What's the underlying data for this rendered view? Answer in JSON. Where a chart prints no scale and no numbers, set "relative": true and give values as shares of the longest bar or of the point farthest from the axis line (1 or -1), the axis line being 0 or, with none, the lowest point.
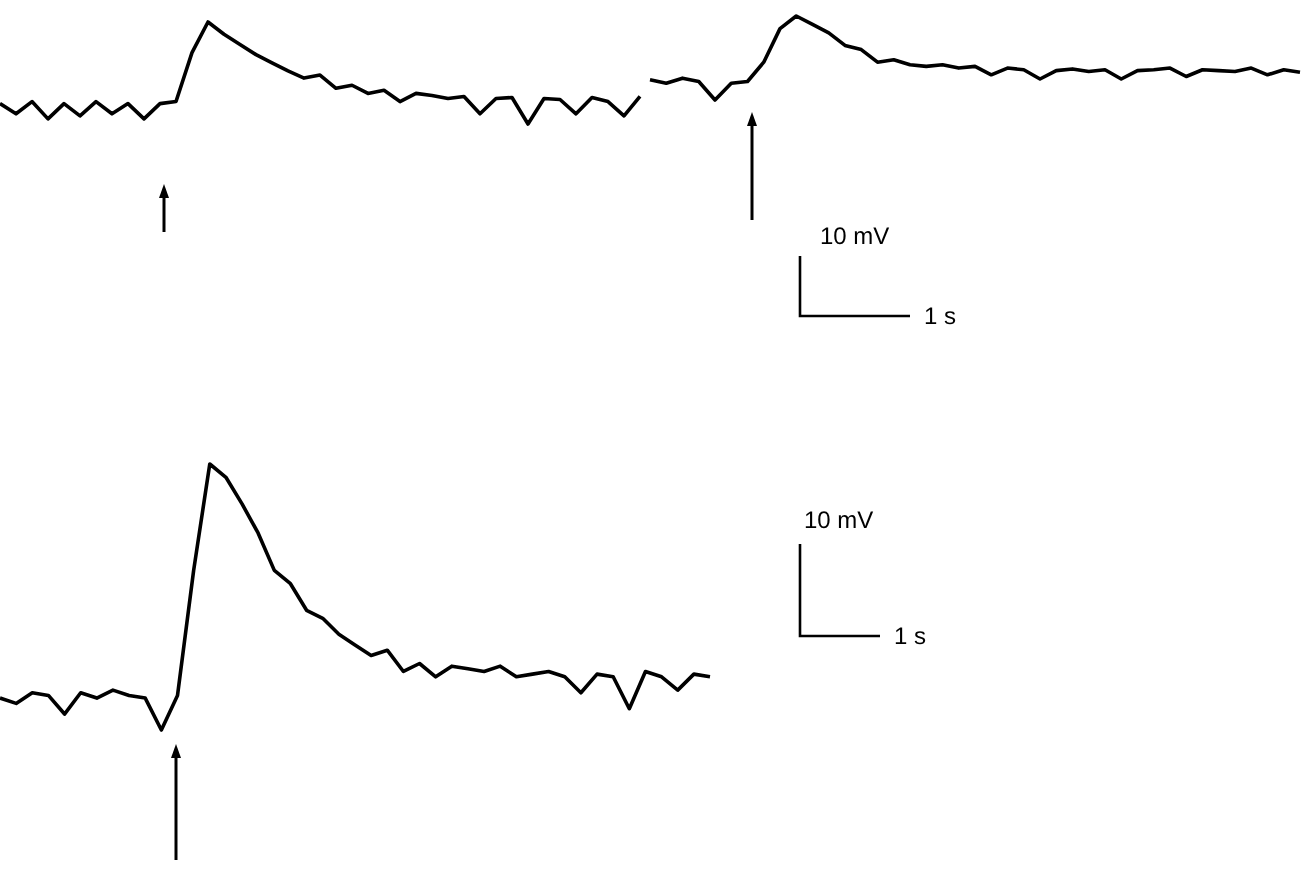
{
  "chart_data": [
    {
      "type": "line",
      "relative": true,
      "color": "#000000",
      "categories": [
        null,
        null,
        null,
        null,
        null,
        null,
        null,
        null,
        null,
        null,
        null,
        null,
        null,
        null,
        null,
        null,
        null,
        null,
        null,
        null,
        null,
        null,
        null,
        null,
        null,
        null,
        null,
        null,
        null,
        null,
        null,
        null,
        null,
        null,
        null,
        null,
        null,
        null,
        null,
        null,
        null
      ],
      "values": [
        0.2,
        0.1,
        0.22,
        0.05,
        0.2,
        0.08,
        0.22,
        0.1,
        0.2,
        0.05,
        0.2,
        0.22,
        0.7,
        1.0,
        0.88,
        0.78,
        0.68,
        0.6,
        0.52,
        0.45,
        0.48,
        0.35,
        0.38,
        0.3,
        0.33,
        0.22,
        0.3,
        0.28,
        0.25,
        0.27,
        0.1,
        0.25,
        0.26,
        0,
        0.25,
        0.24,
        0.1,
        0.26,
        0.22,
        0.08,
        0.27
      ]
    },
    {
      "type": "line",
      "relative": true,
      "color": "#000000",
      "categories": [
        null,
        null,
        null,
        null,
        null,
        null,
        null,
        null,
        null,
        null,
        null,
        null,
        null,
        null,
        null,
        null,
        null,
        null,
        null,
        null,
        null,
        null,
        null,
        null,
        null,
        null,
        null,
        null,
        null,
        null,
        null,
        null,
        null,
        null,
        null,
        null,
        null,
        null,
        null,
        null,
        null
      ],
      "values": [
        0.24,
        0.2,
        0.26,
        0.22,
        0,
        0.2,
        0.22,
        0.45,
        0.85,
        1.0,
        0.9,
        0.8,
        0.65,
        0.6,
        0.45,
        0.48,
        0.42,
        0.4,
        0.42,
        0.38,
        0.4,
        0.3,
        0.38,
        0.36,
        0.25,
        0.35,
        0.37,
        0.34,
        0.36,
        0.25,
        0.35,
        0.36,
        0.38,
        0.28,
        0.36,
        0.35,
        0.34,
        0.38,
        0.3,
        0.36,
        0.33
      ],
      "annotations": [
        "10 mV",
        "1 s"
      ]
    },
    {
      "type": "line",
      "relative": true,
      "color": "#000000",
      "categories": [
        null,
        null,
        null,
        null,
        null,
        null,
        null,
        null,
        null,
        null,
        null,
        null,
        null,
        null,
        null,
        null,
        null,
        null,
        null,
        null,
        null,
        null,
        null,
        null,
        null,
        null,
        null,
        null,
        null,
        null,
        null,
        null,
        null,
        null,
        null,
        null,
        null,
        null,
        null,
        null,
        null,
        null,
        null,
        null,
        null
      ],
      "values": [
        0.12,
        0.1,
        0.14,
        0.13,
        0.06,
        0.14,
        0.12,
        0.15,
        0.13,
        0.12,
        0,
        0.13,
        0.6,
        1.0,
        0.95,
        0.85,
        0.74,
        0.6,
        0.55,
        0.45,
        0.42,
        0.36,
        0.32,
        0.28,
        0.3,
        0.22,
        0.25,
        0.2,
        0.24,
        0.23,
        0.22,
        0.24,
        0.2,
        0.21,
        0.22,
        0.2,
        0.14,
        0.21,
        0.2,
        0.08,
        0.22,
        0.2,
        0.15,
        0.21,
        0.2
      ],
      "annotations": [
        "10 mV",
        "1 s"
      ]
    }
  ]
}
